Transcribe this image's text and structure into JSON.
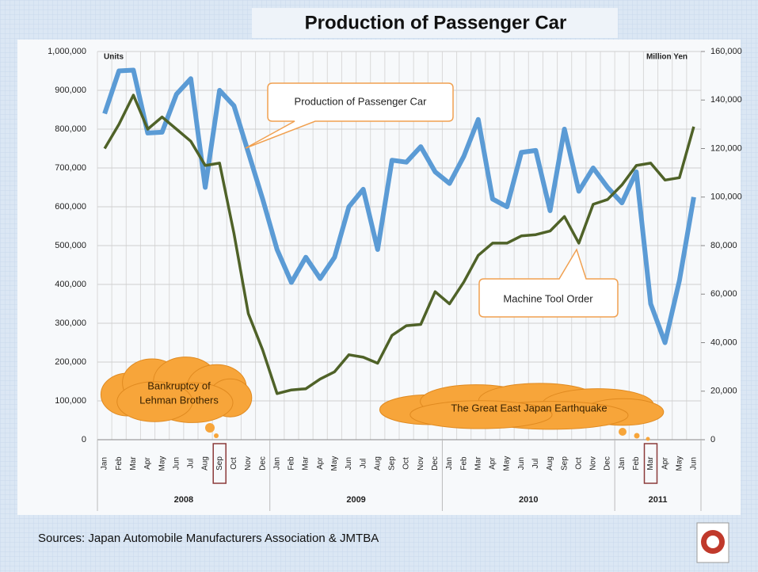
{
  "chart_data": {
    "type": "line",
    "title": "Production of Passenger Car",
    "y_label": "Units",
    "y2_label": "Million Yen",
    "categories": [
      "Jan",
      "Feb",
      "Mar",
      "Apr",
      "May",
      "Jun",
      "Jul",
      "Aug",
      "Sep",
      "Oct",
      "Nov",
      "Dec",
      "Jan",
      "Feb",
      "Mar",
      "Apr",
      "May",
      "Jun",
      "Jul",
      "Aug",
      "Sep",
      "Oct",
      "Nov",
      "Dec",
      "Jan",
      "Feb",
      "Mar",
      "Apr",
      "May",
      "Jun",
      "Jul",
      "Aug",
      "Sep",
      "Oct",
      "Nov",
      "Dec",
      "Jan",
      "Feb",
      "Mar",
      "Apr",
      "May",
      "Jun"
    ],
    "groups": [
      {
        "label": "2008",
        "count": 12
      },
      {
        "label": "2009",
        "count": 12
      },
      {
        "label": "2010",
        "count": 12
      },
      {
        "label": "2011",
        "count": 6
      }
    ],
    "series": [
      {
        "name": "Production of Passenger Car",
        "color": "#5b9bd5",
        "axis": "y",
        "values": [
          840000,
          950000,
          952000,
          790000,
          792000,
          890000,
          930000,
          650000,
          900000,
          860000,
          740000,
          620000,
          490000,
          405000,
          470000,
          415000,
          470000,
          600000,
          645000,
          490000,
          720000,
          715000,
          755000,
          690000,
          660000,
          730000,
          825000,
          620000,
          600000,
          740000,
          745000,
          590000,
          800000,
          640000,
          700000,
          650000,
          610000,
          690000,
          350000,
          250000,
          410000,
          625000
        ]
      },
      {
        "name": "Machine Tool Order",
        "color": "#4f6228",
        "axis": "y2",
        "values": [
          120000,
          130000,
          142000,
          128000,
          133000,
          128000,
          123000,
          113000,
          114000,
          85000,
          52000,
          37000,
          19000,
          20500,
          21000,
          25000,
          28000,
          35000,
          34000,
          31500,
          43000,
          47000,
          47500,
          61000,
          56000,
          65000,
          76000,
          81000,
          81000,
          84000,
          84500,
          86000,
          92000,
          81000,
          97000,
          99000,
          105000,
          113000,
          114000,
          107000,
          108000,
          129000
        ]
      }
    ],
    "ylim": [
      0,
      1000000
    ],
    "yticks": [
      0,
      {
        "value": 100000,
        "label": "100,000"
      },
      {
        "value": 200000,
        "label": "200,000"
      },
      {
        "value": 300000,
        "label": "300,000"
      },
      {
        "value": 400000,
        "label": "400,000"
      },
      {
        "value": 500000,
        "label": "500,000"
      },
      {
        "value": 600000,
        "label": "600,000"
      },
      {
        "value": 700000,
        "label": "700,000"
      },
      {
        "value": 800000,
        "label": "800,000"
      },
      {
        "value": 900000,
        "label": "900,000"
      },
      {
        "value": 1000000,
        "label": "1,000,000"
      }
    ],
    "y2lim": [
      0,
      160000
    ],
    "y2ticks": [
      0,
      {
        "value": 20000,
        "label": "20,000"
      },
      {
        "value": 40000,
        "label": "40,000"
      },
      {
        "value": 60000,
        "label": "60,000"
      },
      {
        "value": 80000,
        "label": "80,000"
      },
      {
        "value": 100000,
        "label": "100,000"
      },
      {
        "value": 120000,
        "label": "120,000"
      },
      {
        "value": 140000,
        "label": "140,000"
      },
      {
        "value": 160000,
        "label": "160,000"
      }
    ],
    "grid": true,
    "annotations": [
      {
        "lines": [
          "Bankruptcy of",
          "Lehman Brothers"
        ]
      },
      {
        "lines": [
          "The Great East Japan Earthquake"
        ]
      }
    ],
    "source": "Sources: Japan Automobile Manufacturers Association & JMTBA"
  }
}
